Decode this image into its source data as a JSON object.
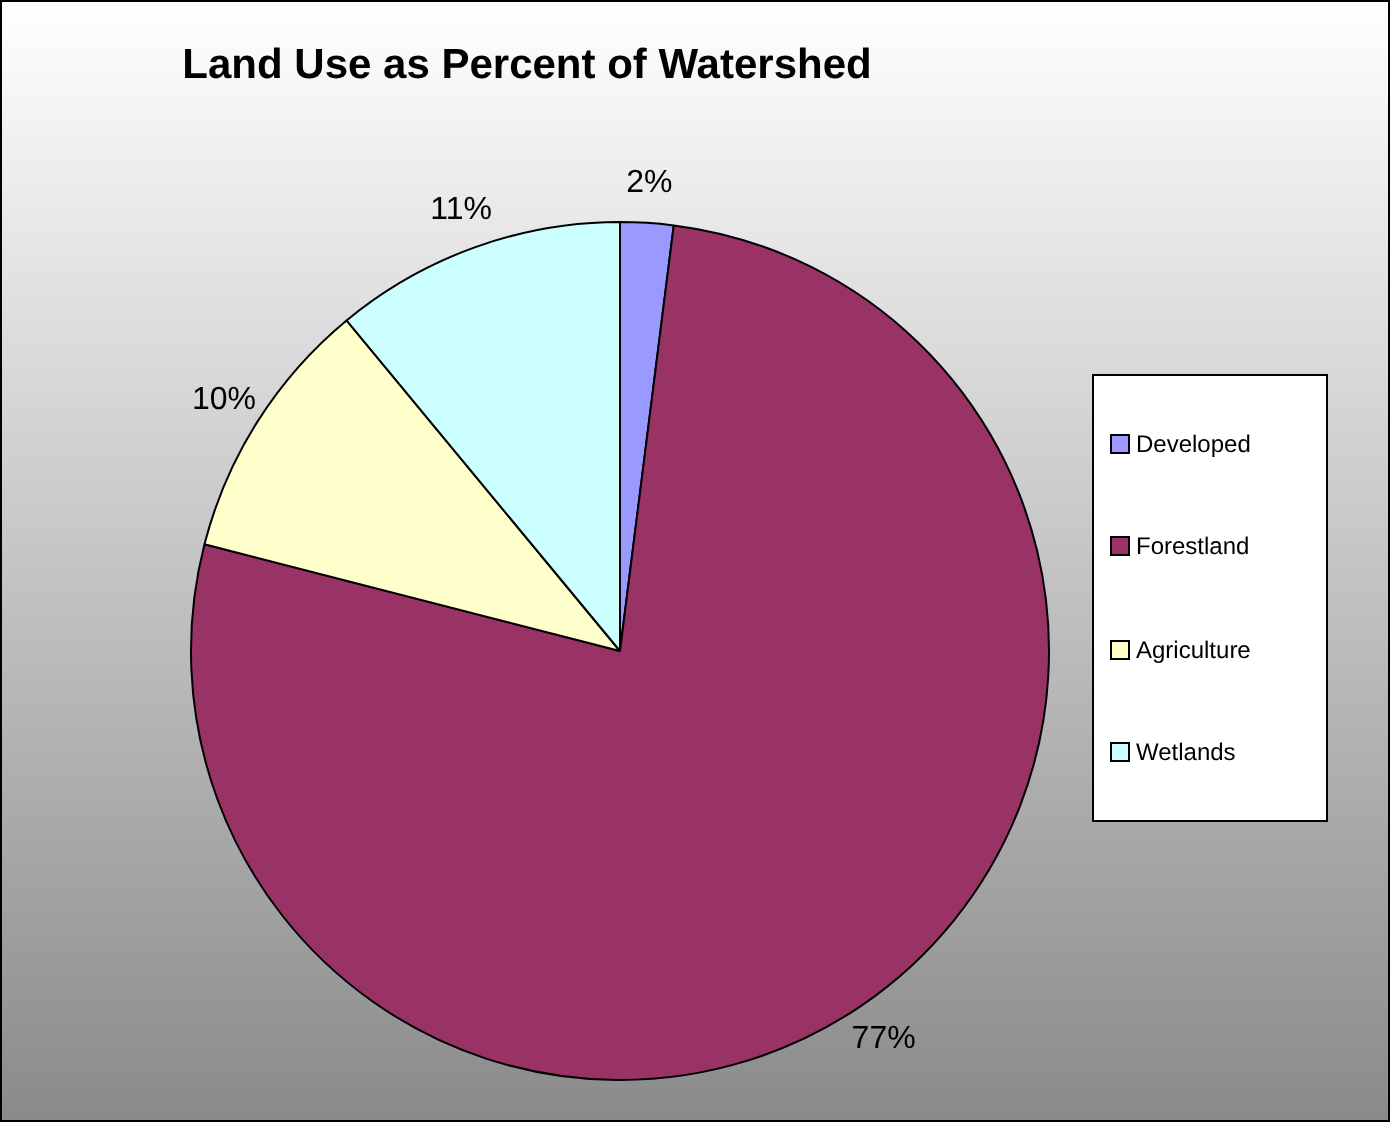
{
  "chart_data": {
    "type": "pie",
    "title": "Land Use as Percent of Watershed",
    "categories": [
      "Developed",
      "Forestland",
      "Agriculture",
      "Wetlands"
    ],
    "values": [
      2,
      77,
      10,
      11
    ],
    "colors": [
      "#9999ff",
      "#993366",
      "#ffffcc",
      "#ccffff"
    ],
    "value_labels": [
      "2%",
      "77%",
      "10%",
      "11%"
    ],
    "legend": "right"
  }
}
